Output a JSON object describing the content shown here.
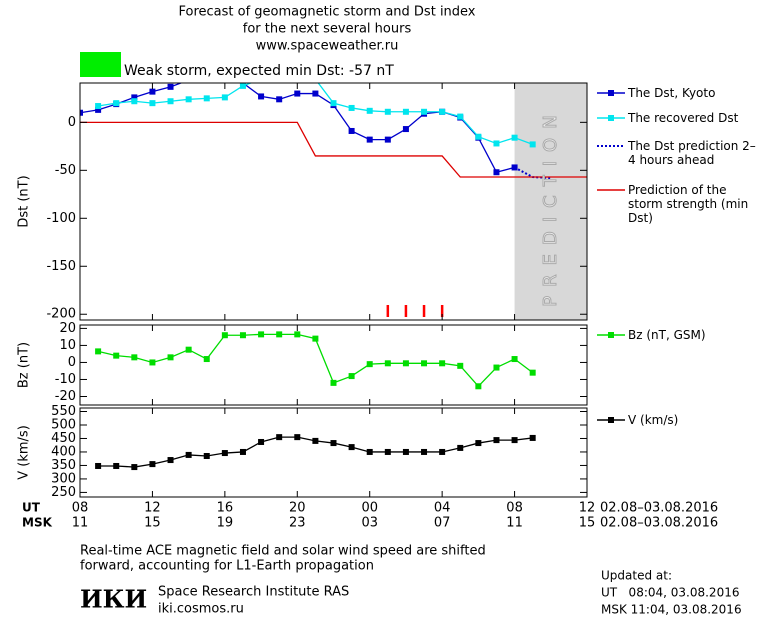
{
  "header": {
    "title_lines": [
      "Forecast of geomagnetic storm and Dst index",
      "for the next several hours",
      "www.spaceweather.ru"
    ],
    "storm_box_color": "#00ee00",
    "storm_text": "Weak storm, expected min Dst: -57 nT"
  },
  "chart_data": [
    {
      "type": "line",
      "ylabel": "Dst (nT)",
      "xlim": [
        8,
        36
      ],
      "ylim": [
        -206,
        41
      ],
      "yticks": [
        0,
        -50,
        -100,
        -150,
        -200
      ],
      "prediction_region": {
        "x": [
          32,
          36
        ],
        "label": "PREDICTION",
        "color": "#d8d8d8"
      },
      "storm_marks": {
        "x": [
          25,
          26,
          27,
          28
        ],
        "color": "#ff0000"
      },
      "series": [
        {
          "name": "The Dst, Kyoto",
          "color": "#0000cc",
          "marker": "square",
          "style": "solid",
          "x": [
            8,
            9,
            10,
            11,
            12,
            13,
            14,
            15,
            16,
            17,
            18,
            19,
            20,
            21,
            22,
            23,
            24,
            25,
            26,
            27,
            28,
            29,
            30,
            31,
            32
          ],
          "values": [
            10,
            13,
            19,
            26,
            32,
            37,
            44,
            46,
            44,
            41,
            27,
            24,
            30,
            30,
            18,
            -9,
            -18,
            -18,
            -7,
            9,
            11,
            5,
            -16,
            -52,
            -47
          ]
        },
        {
          "name": "The recovered Dst",
          "color": "#00e5ee",
          "marker": "square",
          "style": "solid",
          "x": [
            9,
            10,
            11,
            12,
            13,
            14,
            15,
            16,
            17,
            18,
            19,
            20,
            21,
            22,
            23,
            24,
            25,
            26,
            27,
            28,
            29,
            30,
            31,
            32,
            33
          ],
          "values": [
            17,
            20,
            22,
            20,
            22,
            24,
            25,
            26,
            38,
            45,
            48,
            48,
            45,
            20,
            15,
            12,
            11,
            11,
            11,
            11,
            6,
            -15,
            -22,
            -16,
            -23
          ]
        },
        {
          "name": "The Dst prediction 2–4 hours ahead",
          "color": "#0000cc",
          "marker": "none",
          "style": "dotted",
          "x": [
            32,
            33,
            34
          ],
          "values": [
            -47,
            -57,
            -58
          ]
        },
        {
          "name": "Prediction of the storm strength (min Dst)",
          "color": "#dd0000",
          "marker": "none",
          "style": "solid",
          "x": [
            8,
            20,
            21,
            28,
            29,
            36
          ],
          "values": [
            0,
            0,
            -35,
            -35,
            -57,
            -57
          ]
        }
      ]
    },
    {
      "type": "line",
      "ylabel": "Bz (nT)",
      "xlim": [
        8,
        36
      ],
      "ylim": [
        -25,
        22
      ],
      "yticks": [
        20,
        10,
        0,
        -10,
        -20
      ],
      "series": [
        {
          "name": "Bz (nT, GSM)",
          "color": "#00dd00",
          "marker": "square",
          "style": "solid",
          "x": [
            9,
            10,
            11,
            12,
            13,
            14,
            15,
            16,
            17,
            18,
            19,
            20,
            21,
            22,
            23,
            24,
            25,
            26,
            27,
            28,
            29,
            30,
            31,
            32,
            33
          ],
          "values": [
            6.5,
            4,
            3,
            0,
            3,
            7.5,
            2,
            16,
            16,
            16.5,
            16.5,
            16.5,
            14,
            -12,
            -8,
            -1,
            -0.5,
            -0.5,
            -0.5,
            -0.5,
            -2,
            -14,
            -3,
            2,
            -6
          ]
        }
      ]
    },
    {
      "type": "line",
      "ylabel": "V (km/s)",
      "xlim": [
        8,
        36
      ],
      "ylim": [
        233,
        563
      ],
      "yticks": [
        550,
        500,
        450,
        400,
        350,
        300,
        250
      ],
      "xlabel": "UT",
      "xrange_label": "02.08–03.08.2016",
      "xticks": [
        {
          "value": 8,
          "label": "08"
        },
        {
          "value": 12,
          "label": "12"
        },
        16,
        20,
        {
          "value": 24,
          "label": "00"
        },
        {
          "value": 28,
          "label": "04"
        },
        {
          "value": 32,
          "label": "08"
        },
        {
          "value": 36,
          "label": "12"
        }
      ],
      "x2label": "MSK",
      "x2range_label": "02.08–03.08.2016",
      "x2ticks": [
        {
          "value": 8,
          "label": "11"
        },
        {
          "value": 12,
          "label": "15"
        },
        {
          "value": 16,
          "label": "19"
        },
        {
          "value": 20,
          "label": "23"
        },
        {
          "value": 24,
          "label": "03"
        },
        {
          "value": 28,
          "label": "07"
        },
        {
          "value": 32,
          "label": "11"
        },
        {
          "value": 36,
          "label": "15"
        }
      ],
      "series": [
        {
          "name": "V (km/s)",
          "color": "#000000",
          "marker": "square",
          "style": "solid",
          "x": [
            9,
            10,
            11,
            12,
            13,
            14,
            15,
            16,
            17,
            18,
            19,
            20,
            21,
            22,
            23,
            24,
            25,
            26,
            27,
            28,
            29,
            30,
            31,
            32,
            33
          ],
          "values": [
            348,
            348,
            344,
            355,
            370,
            389,
            385,
            396,
            400,
            437,
            455,
            455,
            441,
            433,
            418,
            400,
            400,
            400,
            400,
            400,
            415,
            433,
            444,
            444,
            452
          ]
        }
      ]
    }
  ],
  "footer": {
    "note_lines": [
      "Real-time ACE magnetic field and solar wind speed are shifted",
      "forward, accounting for L1-Earth propagation"
    ],
    "logo": "ИКИ",
    "institute": "Space Research Institute RAS",
    "site": "iki.cosmos.ru",
    "updated_lines": [
      "Updated at:",
      "UT   08:04, 03.08.2016",
      "MSK 11:04, 03.08.2016"
    ]
  }
}
